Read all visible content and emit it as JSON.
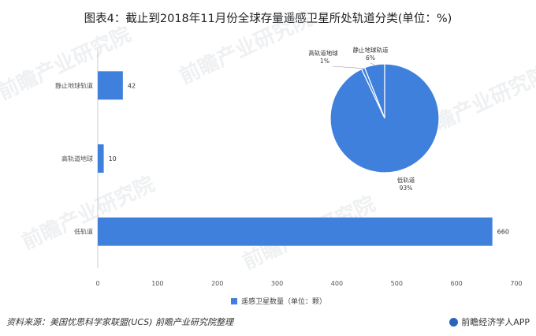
{
  "title": "图表4：截止到2018年11月份全球存量遥感卫星所处轨道分类(单位：%)",
  "source": "资料来源：美国忧思科学家联盟(UCS) 前瞻产业研究院整理",
  "brand": "前瞻经济学人APP",
  "watermark": "前瞻产业研究院",
  "colors": {
    "bar": "#3f80dd",
    "slice": "#3f80dd",
    "slice_edge": "#ffffff",
    "axis_text": "#555555"
  },
  "chart_data": [
    {
      "type": "bar",
      "orientation": "horizontal",
      "categories": [
        "静止地球轨道",
        "高轨道地球",
        "低轨道"
      ],
      "values": [
        42,
        10,
        660
      ],
      "xlim": [
        0,
        700
      ],
      "xticks": [
        0,
        100,
        200,
        300,
        400,
        500,
        600,
        700
      ],
      "grid": false,
      "legend": {
        "label": "遥感卫星数量（单位：颗）",
        "position": "bottom"
      }
    },
    {
      "type": "pie",
      "labels": [
        "静止地球轨道",
        "高轨道地球",
        "低轨道"
      ],
      "values": [
        6,
        1,
        93
      ],
      "value_labels": [
        "6%",
        "1%",
        "93%"
      ]
    }
  ]
}
